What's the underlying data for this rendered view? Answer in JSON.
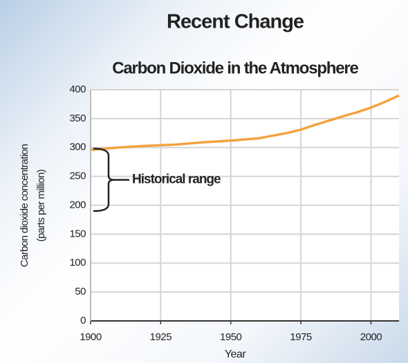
{
  "chart_data": {
    "type": "line",
    "title": "Recent Change",
    "subtitle": "Carbon Dioxide in the Atmosphere",
    "x_label": "Year",
    "y_label": [
      "Carbon dioxide concentration",
      "(parts per million)"
    ],
    "x": [
      1900,
      1910,
      1920,
      1930,
      1940,
      1950,
      1960,
      1970,
      1975,
      1980,
      1990,
      1995,
      2000,
      2005,
      2010
    ],
    "series": [
      {
        "color": "#f4a23e",
        "values": [
          296,
          300,
          303,
          305,
          309,
          312,
          316,
          325,
          331,
          339,
          354,
          361,
          369,
          379,
          390
        ]
      }
    ],
    "xlim": [
      1900,
      2010
    ],
    "xticks": [
      1900,
      1925,
      1950,
      1975,
      2000
    ],
    "ylim": [
      0,
      400
    ],
    "yticks": [
      0,
      50,
      100,
      150,
      200,
      250,
      300,
      350,
      400
    ],
    "grid": true,
    "annotations": [
      {
        "text": "Historical range",
        "range": [
          190,
          298
        ]
      }
    ]
  }
}
